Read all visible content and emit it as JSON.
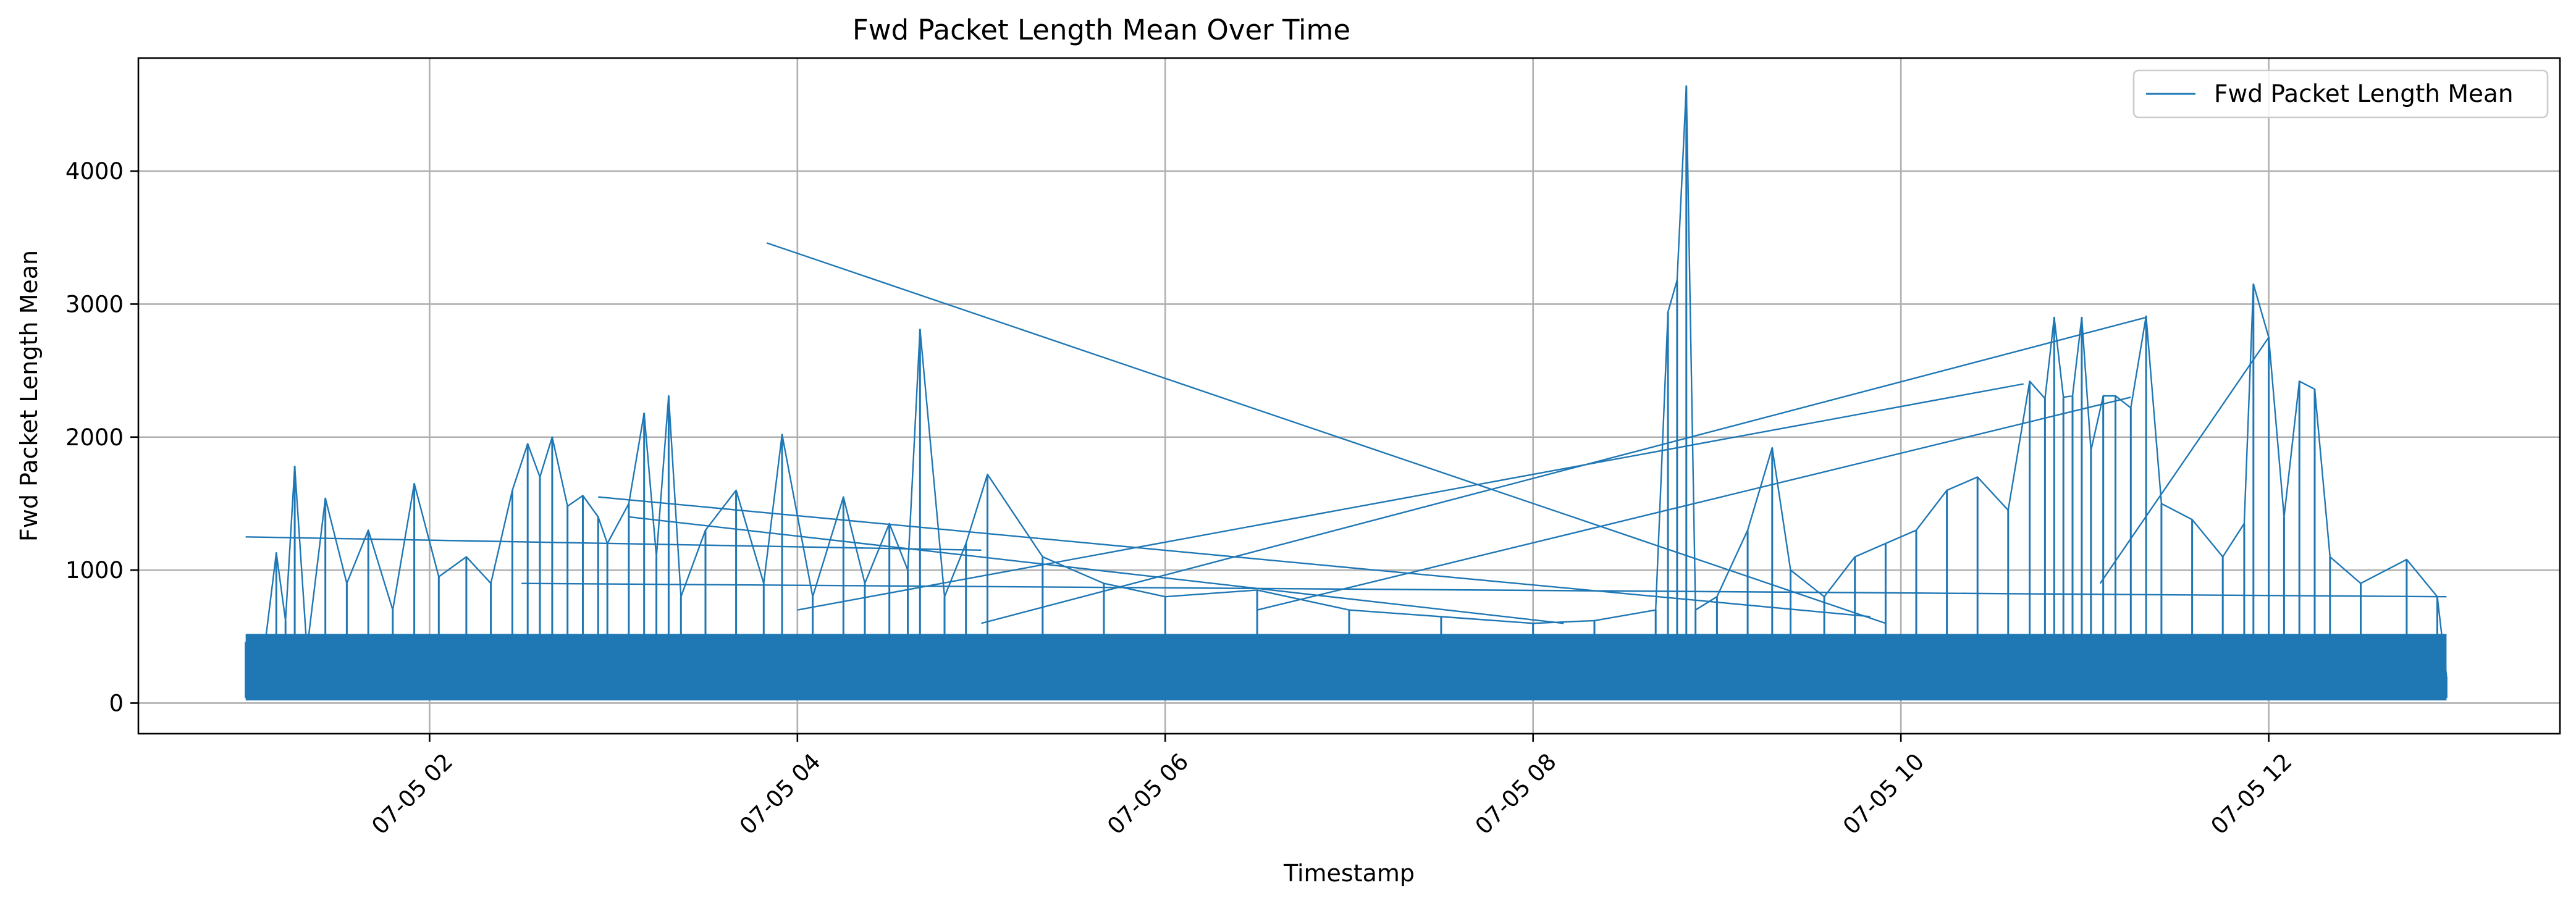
{
  "chart_data": {
    "type": "line",
    "title": "Fwd Packet Length Mean Over Time",
    "xlabel": "Timestamp",
    "ylabel": "Fwd Packet Length Mean",
    "xlim": [
      "2017-07-05 00:25",
      "2017-07-05 13:35"
    ],
    "ylim": [
      -230,
      4850
    ],
    "x_ticks": [
      {
        "value": "2017-07-05 02:00",
        "label": "07-05 02"
      },
      {
        "value": "2017-07-05 04:00",
        "label": "07-05 04"
      },
      {
        "value": "2017-07-05 06:00",
        "label": "07-05 06"
      },
      {
        "value": "2017-07-05 08:00",
        "label": "07-05 08"
      },
      {
        "value": "2017-07-05 10:00",
        "label": "07-05 10"
      },
      {
        "value": "2017-07-05 12:00",
        "label": "07-05 12"
      }
    ],
    "y_ticks": [
      0,
      1000,
      2000,
      3000,
      4000
    ],
    "grid": true,
    "legend_position": "top-right",
    "series": [
      {
        "name": "Fwd Packet Length Mean",
        "color": "#1f77b4",
        "x": [
          "2017-07-05 01:00",
          "2017-07-05 01:05",
          "2017-07-05 01:10",
          "2017-07-05 01:13",
          "2017-07-05 01:16",
          "2017-07-05 01:20",
          "2017-07-05 01:26",
          "2017-07-05 01:33",
          "2017-07-05 01:40",
          "2017-07-05 01:48",
          "2017-07-05 01:55",
          "2017-07-05 02:03",
          "2017-07-05 02:12",
          "2017-07-05 02:20",
          "2017-07-05 02:27",
          "2017-07-05 02:32",
          "2017-07-05 02:36",
          "2017-07-05 02:40",
          "2017-07-05 02:45",
          "2017-07-05 02:50",
          "2017-07-05 02:55",
          "2017-07-05 02:58",
          "2017-07-05 03:05",
          "2017-07-05 03:10",
          "2017-07-05 03:14",
          "2017-07-05 03:18",
          "2017-07-05 03:22",
          "2017-07-05 03:30",
          "2017-07-05 03:40",
          "2017-07-05 03:49",
          "2017-07-05 03:55",
          "2017-07-05 04:05",
          "2017-07-05 04:15",
          "2017-07-05 04:22",
          "2017-07-05 04:30",
          "2017-07-05 04:36",
          "2017-07-05 04:40",
          "2017-07-05 04:48",
          "2017-07-05 04:55",
          "2017-07-05 05:02",
          "2017-07-05 05:20",
          "2017-07-05 05:40",
          "2017-07-05 06:00",
          "2017-07-05 06:30",
          "2017-07-05 07:00",
          "2017-07-05 07:30",
          "2017-07-05 08:00",
          "2017-07-05 08:20",
          "2017-07-05 08:40",
          "2017-07-05 08:44",
          "2017-07-05 08:47",
          "2017-07-05 08:50",
          "2017-07-05 08:53",
          "2017-07-05 09:00",
          "2017-07-05 09:10",
          "2017-07-05 09:18",
          "2017-07-05 09:24",
          "2017-07-05 09:35",
          "2017-07-05 09:45",
          "2017-07-05 09:55",
          "2017-07-05 10:05",
          "2017-07-05 10:15",
          "2017-07-05 10:25",
          "2017-07-05 10:35",
          "2017-07-05 10:42",
          "2017-07-05 10:47",
          "2017-07-05 10:50",
          "2017-07-05 10:53",
          "2017-07-05 10:56",
          "2017-07-05 10:59",
          "2017-07-05 11:02",
          "2017-07-05 11:06",
          "2017-07-05 11:10",
          "2017-07-05 11:15",
          "2017-07-05 11:20",
          "2017-07-05 11:25",
          "2017-07-05 11:35",
          "2017-07-05 11:45",
          "2017-07-05 11:52",
          "2017-07-05 11:55",
          "2017-07-05 12:00",
          "2017-07-05 12:05",
          "2017-07-05 12:10",
          "2017-07-05 12:15",
          "2017-07-05 12:20",
          "2017-07-05 12:30",
          "2017-07-05 12:45",
          "2017-07-05 12:55",
          "2017-07-05 12:58"
        ],
        "y": [
          460,
          200,
          1130,
          620,
          1780,
          400,
          1540,
          900,
          1300,
          700,
          1650,
          950,
          1100,
          900,
          1600,
          1950,
          1700,
          2000,
          1480,
          1560,
          1400,
          1200,
          1500,
          2180,
          1100,
          2310,
          800,
          1300,
          1600,
          900,
          2020,
          800,
          1550,
          900,
          1350,
          1000,
          2810,
          800,
          1200,
          1720,
          1100,
          900,
          800,
          850,
          700,
          650,
          600,
          620,
          700,
          2940,
          3180,
          4640,
          700,
          800,
          1300,
          1920,
          1000,
          800,
          1100,
          1200,
          1300,
          1600,
          1700,
          1450,
          2420,
          2290,
          2900,
          2300,
          2310,
          2900,
          1900,
          2310,
          2310,
          2220,
          2910,
          1500,
          1380,
          1100,
          1350,
          3150,
          2750,
          1400,
          2420,
          2360,
          1100,
          900,
          1080,
          800,
          200
        ]
      }
    ]
  }
}
